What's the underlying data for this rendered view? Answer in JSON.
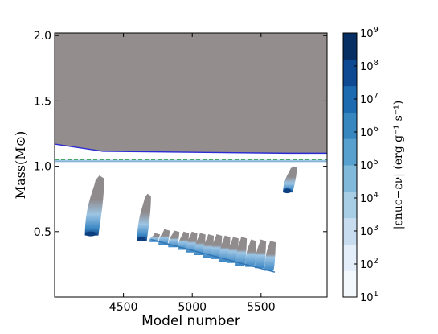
{
  "chart_data": {
    "type": "heatmap",
    "title": "",
    "xlabel": "Model number",
    "ylabel": "Mass(M⊙)",
    "xlim": [
      4000,
      5980
    ],
    "ylim": [
      0.0,
      2.02
    ],
    "x_ticks": [
      4500,
      5000,
      5500
    ],
    "y_ticks": [
      0.5,
      1.0,
      1.5,
      2.0
    ],
    "x_tick_labels": [
      "4500",
      "5000",
      "5500"
    ],
    "y_tick_labels": [
      "0.5",
      "1.0",
      "1.5",
      "2.0"
    ],
    "grid": false,
    "colorbar": {
      "label": "|εnuc−εν|  (erg g⁻¹ s⁻¹)",
      "scale": "log",
      "min_exp": 1,
      "max_exp": 9,
      "tick_exponents": [
        1,
        2,
        3,
        4,
        5,
        6,
        7,
        8,
        9
      ],
      "tick_labels": [
        "10",
        "10",
        "10",
        "10",
        "10",
        "10",
        "10",
        "10",
        "10"
      ],
      "colors": [
        "#f3f8fd",
        "#e3eefa",
        "#c7dcef",
        "#a8cee5",
        "#80b9da",
        "#58a1cf",
        "#3686c0",
        "#1c6aaf",
        "#0d4a91",
        "#082f63"
      ]
    },
    "regions": {
      "convective_envelope": {
        "label": "grey region",
        "color": "#948d8d",
        "y_bottom_start": 1.17,
        "y_bottom_end": 1.1,
        "y_top": 2.02
      },
      "envelope_boundary": {
        "color": "#2b2bd6"
      },
      "burning_shell": {
        "mass": 1.04,
        "color": "#6aa4cf"
      },
      "dashed_line": {
        "mass": 1.05,
        "color": "#44a766"
      }
    },
    "flashes": [
      {
        "x_start": 4220,
        "x_end": 4360,
        "m_bottom": 0.47,
        "m_top": 0.93
      },
      {
        "x_start": 4600,
        "x_end": 4700,
        "m_bottom": 0.43,
        "m_top": 0.79
      },
      {
        "x_start": 5660,
        "x_end": 5760,
        "m_bottom": 0.8,
        "m_top": 1.0
      }
    ],
    "minor_flashes": [
      {
        "x": 4720,
        "m_bottom": 0.42,
        "m_top": 0.49
      },
      {
        "x": 4790,
        "m_bottom": 0.4,
        "m_top": 0.52
      },
      {
        "x": 4860,
        "m_bottom": 0.38,
        "m_top": 0.51
      },
      {
        "x": 4930,
        "m_bottom": 0.36,
        "m_top": 0.5
      },
      {
        "x": 4990,
        "m_bottom": 0.34,
        "m_top": 0.5
      },
      {
        "x": 5050,
        "m_bottom": 0.32,
        "m_top": 0.49
      },
      {
        "x": 5110,
        "m_bottom": 0.3,
        "m_top": 0.48
      },
      {
        "x": 5170,
        "m_bottom": 0.29,
        "m_top": 0.48
      },
      {
        "x": 5230,
        "m_bottom": 0.27,
        "m_top": 0.47
      },
      {
        "x": 5290,
        "m_bottom": 0.26,
        "m_top": 0.46
      },
      {
        "x": 5350,
        "m_bottom": 0.24,
        "m_top": 0.46
      },
      {
        "x": 5420,
        "m_bottom": 0.23,
        "m_top": 0.44
      },
      {
        "x": 5490,
        "m_bottom": 0.22,
        "m_top": 0.44
      },
      {
        "x": 5560,
        "m_bottom": 0.2,
        "m_top": 0.43
      }
    ]
  }
}
